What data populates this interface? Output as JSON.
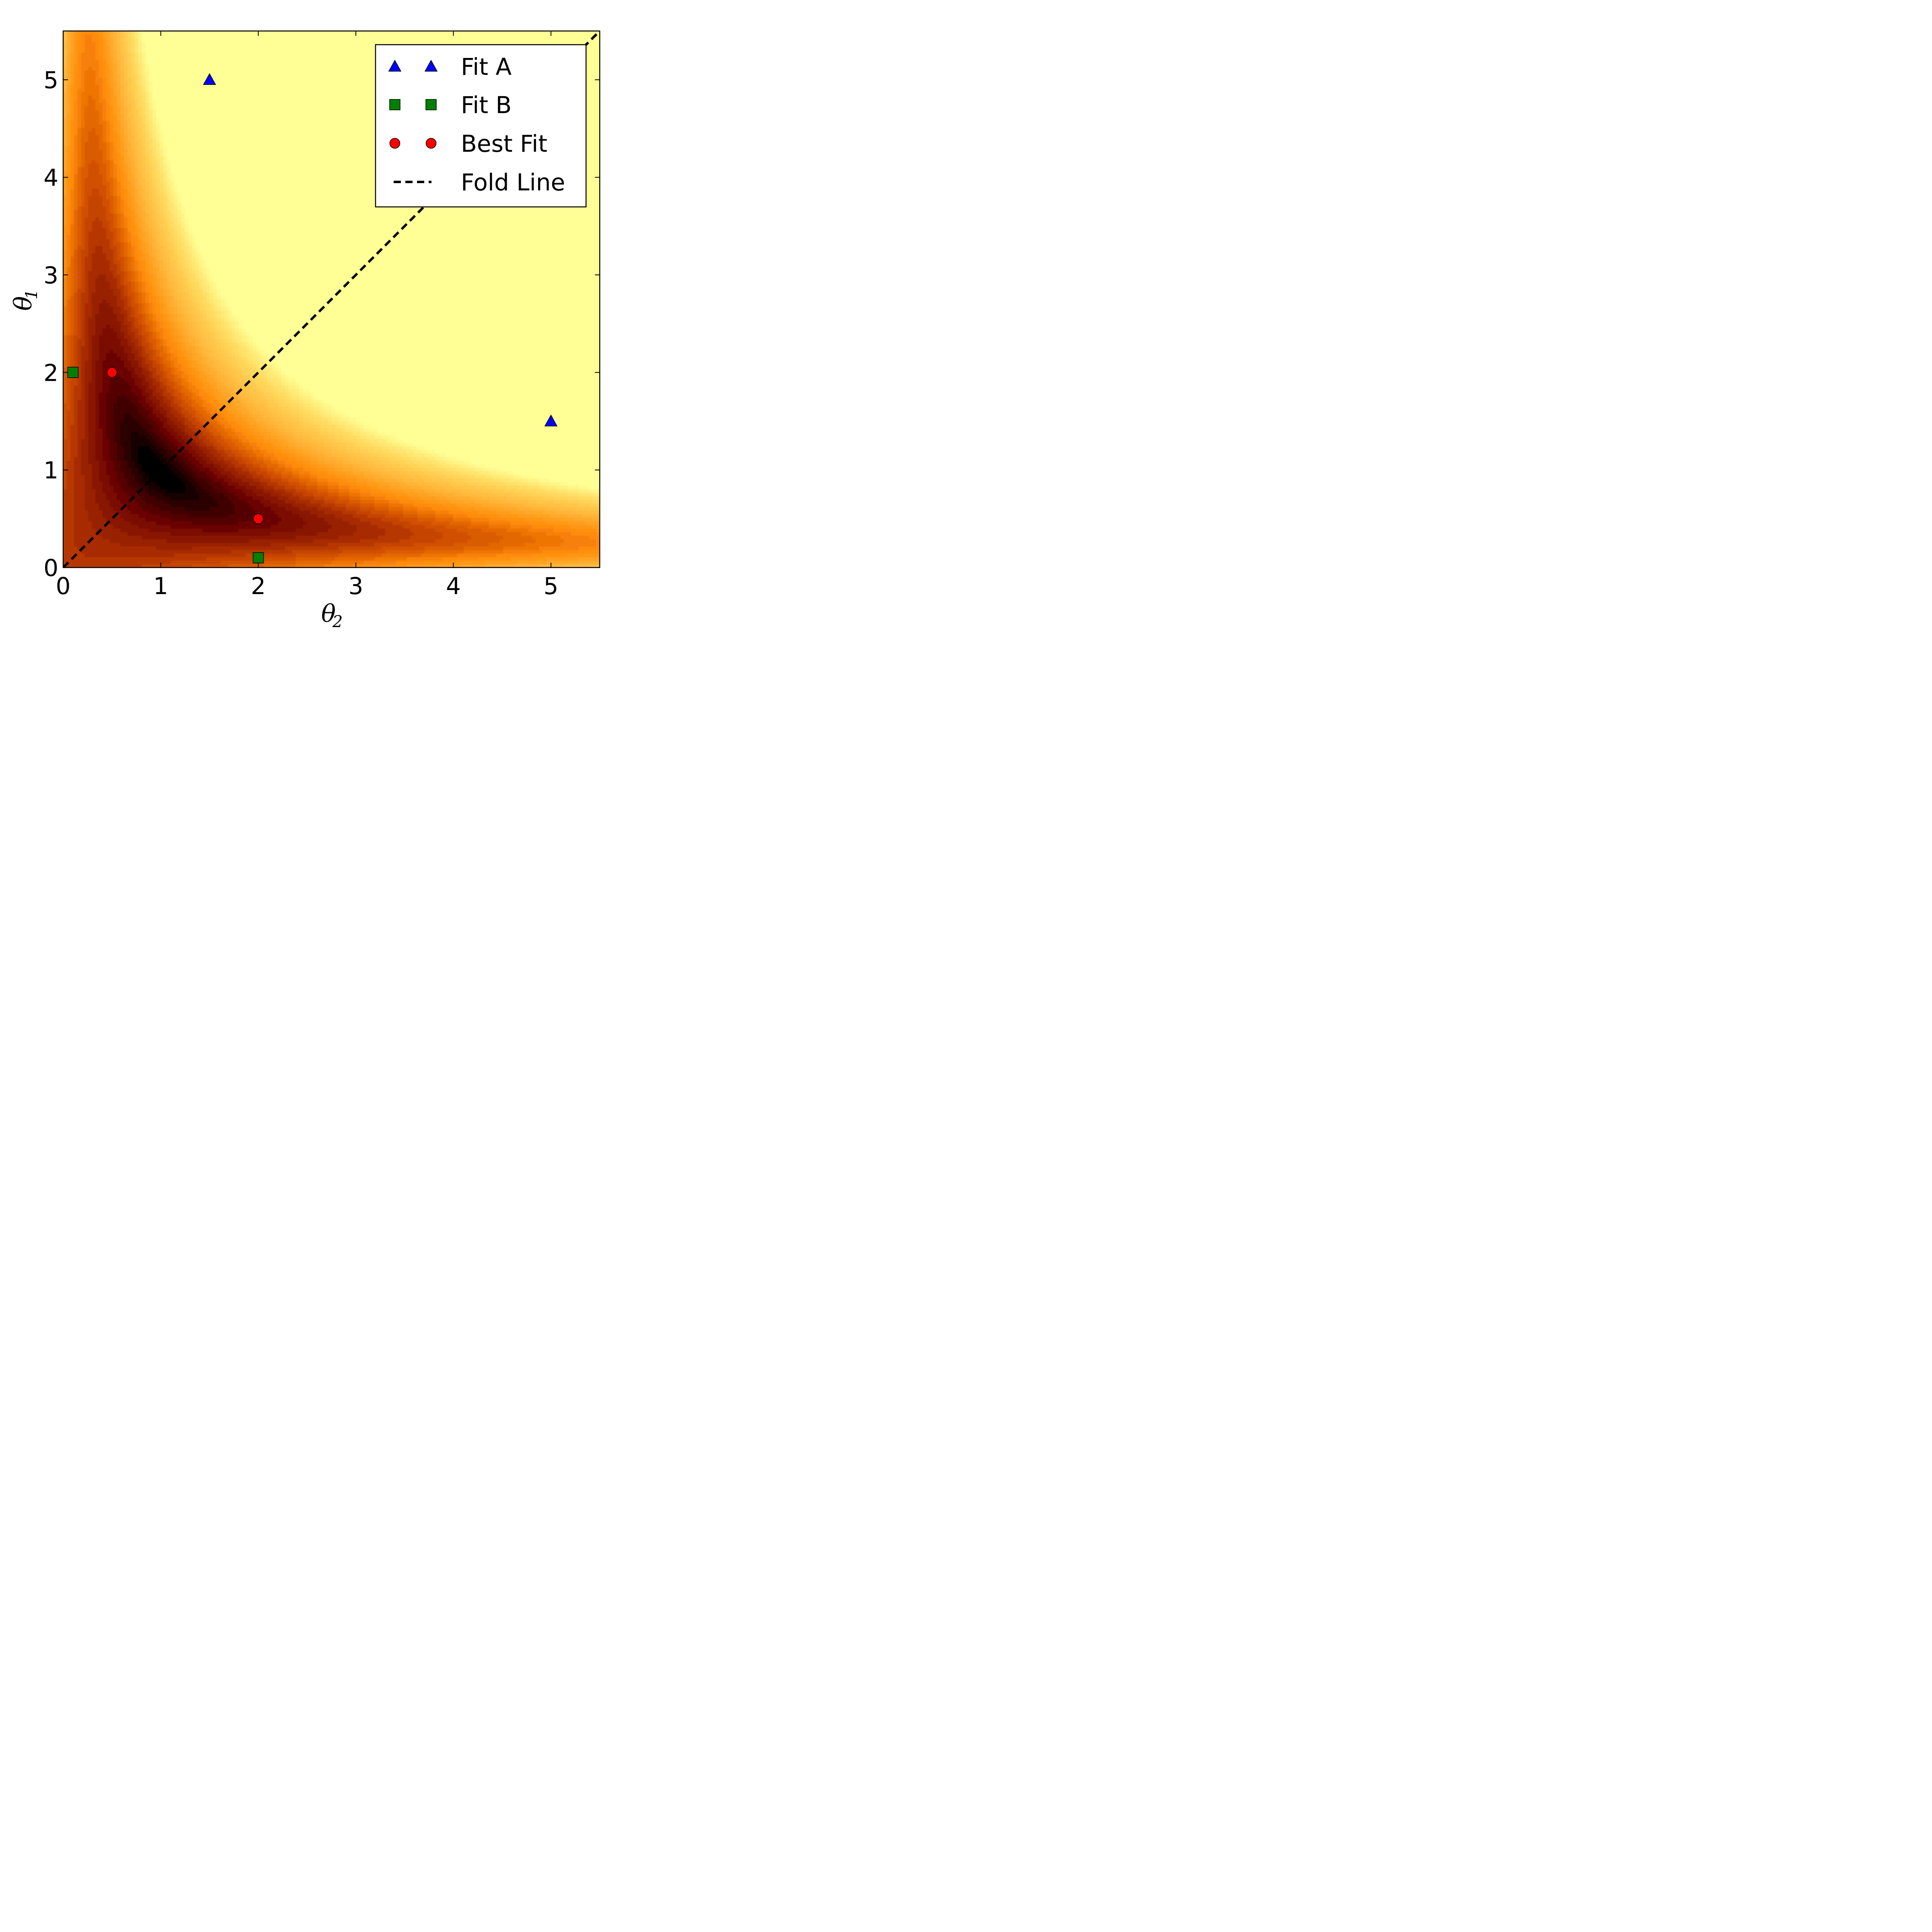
{
  "chart_data": {
    "type": "contour",
    "xlabel": "θ",
    "xlabel_sub": "2",
    "ylabel": "θ",
    "ylabel_sub": "1",
    "xlim": [
      0,
      5.5
    ],
    "ylim": [
      0,
      5.5
    ],
    "xticks": [
      0,
      1,
      2,
      3,
      4,
      5
    ],
    "yticks": [
      0,
      1,
      2,
      3,
      4,
      5
    ],
    "xtick_labels": [
      "0",
      "1",
      "2",
      "3",
      "4",
      "5"
    ],
    "ytick_labels": [
      "0",
      "1",
      "2",
      "3",
      "4",
      "5"
    ],
    "colormap": "afmhot",
    "grid": false,
    "legend_position": "top-right",
    "series": [
      {
        "name": "Fit A",
        "marker": "triangle",
        "color": "#0000ff",
        "points": [
          {
            "x": 1.5,
            "y": 5.0
          },
          {
            "x": 5.0,
            "y": 1.5
          }
        ]
      },
      {
        "name": "Fit B",
        "marker": "square",
        "color": "#008000",
        "points": [
          {
            "x": 0.1,
            "y": 2.0
          },
          {
            "x": 2.0,
            "y": 0.1
          }
        ]
      },
      {
        "name": "Best Fit",
        "marker": "circle",
        "color": "#ff0000",
        "points": [
          {
            "x": 0.5,
            "y": 2.0
          },
          {
            "x": 2.0,
            "y": 0.5
          }
        ]
      },
      {
        "name": "Fold Line",
        "marker": "dashed-line",
        "color": "#000000",
        "points": [
          {
            "x": 0,
            "y": 0
          },
          {
            "x": 5.5,
            "y": 5.5
          }
        ]
      }
    ]
  }
}
